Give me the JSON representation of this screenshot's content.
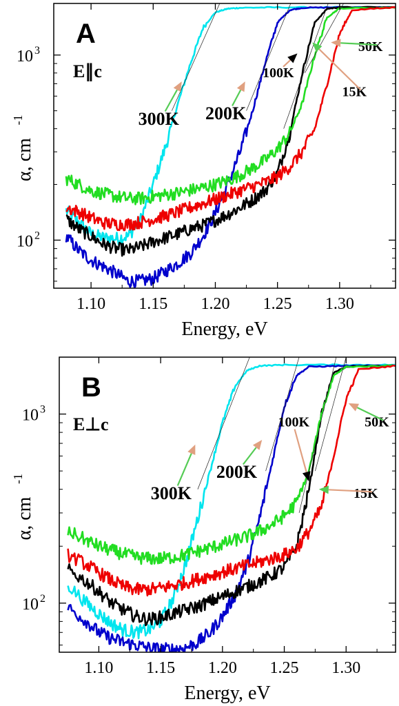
{
  "chart_data": [
    {
      "type": "line",
      "panel": "A",
      "polarization": "E∥c",
      "xlabel": "Energy, eV",
      "ylabel": "α, cm",
      "ylabel_sup": "-1",
      "xlim": [
        1.07,
        1.345
      ],
      "ylim": [
        55,
        1900
      ],
      "yscale": "log",
      "grid": false,
      "xticks": [
        1.1,
        1.15,
        1.2,
        1.25,
        1.3
      ],
      "xtick_labels": [
        "1.10",
        "1.15",
        "1.20",
        "1.25",
        "1.30"
      ],
      "yticks": [
        100,
        1000
      ],
      "ytick_base": "10",
      "ytick_exps": [
        "2",
        "3"
      ],
      "series": [
        {
          "name": "300K",
          "color": "#00e5ee",
          "x": [
            1.08,
            1.09,
            1.1,
            1.11,
            1.12,
            1.13,
            1.14,
            1.15,
            1.16,
            1.17,
            1.18,
            1.19,
            1.2,
            1.21,
            1.22,
            1.25,
            1.3,
            1.345
          ],
          "y": [
            145,
            125,
            108,
            103,
            102,
            105,
            130,
            200,
            320,
            550,
            900,
            1400,
            1700,
            1780,
            1800,
            1810,
            1810,
            1810
          ]
        },
        {
          "name": "200K",
          "color": "#0000cc",
          "x": [
            1.08,
            1.09,
            1.1,
            1.11,
            1.12,
            1.13,
            1.14,
            1.15,
            1.16,
            1.17,
            1.18,
            1.19,
            1.2,
            1.21,
            1.22,
            1.23,
            1.24,
            1.25,
            1.26,
            1.27,
            1.3,
            1.345
          ],
          "y": [
            105,
            88,
            78,
            72,
            66,
            60,
            60,
            62,
            68,
            75,
            85,
            105,
            140,
            200,
            300,
            500,
            900,
            1500,
            1750,
            1800,
            1810,
            1810
          ]
        },
        {
          "name": "100K",
          "color": "#000000",
          "x": [
            1.08,
            1.09,
            1.1,
            1.11,
            1.12,
            1.13,
            1.14,
            1.15,
            1.16,
            1.17,
            1.18,
            1.19,
            1.2,
            1.21,
            1.22,
            1.23,
            1.24,
            1.25,
            1.26,
            1.27,
            1.28,
            1.29,
            1.3,
            1.345
          ],
          "y": [
            130,
            115,
            105,
            95,
            90,
            88,
            92,
            98,
            103,
            108,
            115,
            120,
            128,
            138,
            150,
            165,
            185,
            230,
            380,
            800,
            1500,
            1780,
            1810,
            1810
          ]
        },
        {
          "name": "50K",
          "color": "#22dd22",
          "x": [
            1.08,
            1.09,
            1.1,
            1.11,
            1.12,
            1.13,
            1.14,
            1.15,
            1.16,
            1.17,
            1.18,
            1.19,
            1.2,
            1.21,
            1.22,
            1.23,
            1.24,
            1.25,
            1.26,
            1.27,
            1.28,
            1.29,
            1.3,
            1.345
          ],
          "y": [
            215,
            200,
            185,
            178,
            172,
            168,
            168,
            172,
            176,
            180,
            186,
            192,
            200,
            210,
            225,
            245,
            270,
            310,
            380,
            550,
            1000,
            1600,
            1790,
            1800
          ]
        },
        {
          "name": "15K",
          "color": "#ee0000",
          "x": [
            1.08,
            1.09,
            1.1,
            1.11,
            1.12,
            1.13,
            1.14,
            1.15,
            1.16,
            1.17,
            1.18,
            1.19,
            1.2,
            1.21,
            1.22,
            1.23,
            1.24,
            1.25,
            1.26,
            1.27,
            1.28,
            1.29,
            1.3,
            1.31,
            1.345
          ],
          "y": [
            150,
            142,
            132,
            124,
            122,
            122,
            125,
            130,
            135,
            142,
            150,
            158,
            166,
            175,
            185,
            195,
            205,
            220,
            250,
            300,
            400,
            700,
            1300,
            1750,
            1810
          ]
        }
      ],
      "fit_lines": [
        {
          "x": [
            1.165,
            1.205
          ],
          "y": [
            500,
            2000
          ]
        },
        {
          "x": [
            1.225,
            1.262
          ],
          "y": [
            500,
            2000
          ]
        },
        {
          "x": [
            1.255,
            1.292
          ],
          "y": [
            400,
            2000
          ]
        },
        {
          "x": [
            1.272,
            1.305
          ],
          "y": [
            800,
            2000
          ]
        }
      ],
      "annotations": [
        {
          "text": "300K",
          "x": 1.138,
          "y": 420,
          "to": [
            1.173,
            720
          ],
          "arrow": "#55cc55",
          "head": "#e0a080",
          "size": 26
        },
        {
          "text": "200K",
          "x": 1.192,
          "y": 450,
          "to": [
            1.224,
            720
          ],
          "arrow": "#55cc55",
          "head": "#e0a080",
          "size": 26
        },
        {
          "text": "100K",
          "x": 1.238,
          "y": 760,
          "to": [
            1.266,
            1020
          ],
          "arrow": "#e0a080",
          "head": "#000000",
          "size": 20
        },
        {
          "text": "50K",
          "x": 1.315,
          "y": 1050,
          "to": [
            1.293,
            1170
          ],
          "arrow": "#55cc55",
          "head": "#e0a080",
          "size": 20
        },
        {
          "text": "15K",
          "x": 1.302,
          "y": 600,
          "to": [
            1.278,
            1170
          ],
          "arrow": "#e0a080",
          "head": "#55cc55",
          "size": 20
        }
      ]
    },
    {
      "type": "line",
      "panel": "B",
      "polarization": "E⊥c",
      "xlabel": "Energy, eV",
      "ylabel": "α, cm",
      "ylabel_sup": "-1",
      "xlim": [
        1.068,
        1.34
      ],
      "ylim": [
        55,
        2000
      ],
      "yscale": "log",
      "grid": false,
      "xticks": [
        1.1,
        1.15,
        1.2,
        1.25,
        1.3
      ],
      "xtick_labels": [
        "1.10",
        "1.15",
        "1.20",
        "1.25",
        "1.30"
      ],
      "yticks": [
        100,
        1000
      ],
      "ytick_base": "10",
      "ytick_exps": [
        "2",
        "3"
      ],
      "series": [
        {
          "name": "300K",
          "color": "#00e5ee",
          "x": [
            1.075,
            1.09,
            1.1,
            1.11,
            1.12,
            1.13,
            1.14,
            1.15,
            1.16,
            1.17,
            1.18,
            1.19,
            1.2,
            1.21,
            1.22,
            1.23,
            1.25,
            1.3,
            1.34
          ],
          "y": [
            125,
            100,
            88,
            78,
            72,
            70,
            72,
            80,
            105,
            160,
            280,
            500,
            900,
            1400,
            1700,
            1800,
            1820,
            1820,
            1820
          ]
        },
        {
          "name": "200K",
          "color": "#0000cc",
          "x": [
            1.075,
            1.09,
            1.1,
            1.11,
            1.12,
            1.13,
            1.14,
            1.15,
            1.16,
            1.17,
            1.18,
            1.19,
            1.2,
            1.21,
            1.22,
            1.23,
            1.24,
            1.25,
            1.26,
            1.27,
            1.3,
            1.34
          ],
          "y": [
            95,
            80,
            70,
            65,
            62,
            60,
            58,
            57,
            57,
            58,
            62,
            70,
            85,
            110,
            160,
            280,
            550,
            1100,
            1600,
            1780,
            1800,
            1800
          ]
        },
        {
          "name": "100K",
          "color": "#000000",
          "x": [
            1.075,
            1.09,
            1.1,
            1.11,
            1.12,
            1.13,
            1.14,
            1.15,
            1.16,
            1.17,
            1.18,
            1.19,
            1.2,
            1.21,
            1.22,
            1.23,
            1.24,
            1.25,
            1.26,
            1.27,
            1.28,
            1.29,
            1.3,
            1.34
          ],
          "y": [
            150,
            130,
            115,
            100,
            92,
            85,
            82,
            84,
            88,
            92,
            96,
            102,
            108,
            115,
            122,
            130,
            140,
            155,
            200,
            400,
            1000,
            1650,
            1780,
            1800
          ]
        },
        {
          "name": "50K",
          "color": "#22dd22",
          "x": [
            1.075,
            1.09,
            1.1,
            1.11,
            1.12,
            1.13,
            1.14,
            1.15,
            1.16,
            1.17,
            1.18,
            1.19,
            1.2,
            1.21,
            1.22,
            1.23,
            1.24,
            1.25,
            1.26,
            1.27,
            1.28,
            1.29,
            1.3,
            1.34
          ],
          "y": [
            240,
            215,
            200,
            190,
            182,
            175,
            172,
            172,
            175,
            180,
            188,
            196,
            205,
            215,
            225,
            240,
            260,
            290,
            340,
            500,
            1000,
            1600,
            1780,
            1800
          ]
        },
        {
          "name": "15K",
          "color": "#ee0000",
          "x": [
            1.075,
            1.09,
            1.1,
            1.11,
            1.12,
            1.13,
            1.14,
            1.15,
            1.16,
            1.17,
            1.18,
            1.19,
            1.2,
            1.21,
            1.22,
            1.23,
            1.24,
            1.25,
            1.26,
            1.27,
            1.28,
            1.29,
            1.3,
            1.31,
            1.34
          ],
          "y": [
            180,
            160,
            145,
            132,
            122,
            118,
            118,
            120,
            124,
            128,
            134,
            140,
            146,
            152,
            158,
            165,
            172,
            180,
            195,
            240,
            320,
            600,
            1200,
            1720,
            1800
          ]
        }
      ],
      "fit_lines": [
        {
          "x": [
            1.18,
            1.222
          ],
          "y": [
            400,
            2000
          ]
        },
        {
          "x": [
            1.235,
            1.262
          ],
          "y": [
            500,
            2000
          ]
        },
        {
          "x": [
            1.262,
            1.292
          ],
          "y": [
            300,
            2000
          ]
        },
        {
          "x": [
            1.275,
            1.3
          ],
          "y": [
            500,
            2000
          ]
        }
      ],
      "annotations": [
        {
          "text": "300K",
          "x": 1.142,
          "y": 355,
          "to": [
            1.178,
            690
          ],
          "arrow": "#55cc55",
          "head": "#e0a080",
          "size": 26
        },
        {
          "text": "200K",
          "x": 1.195,
          "y": 460,
          "to": [
            1.232,
            730
          ],
          "arrow": "#55cc55",
          "head": "#e0a080",
          "size": 26
        },
        {
          "text": "100K",
          "x": 1.245,
          "y": 860,
          "to": [
            1.27,
            440
          ],
          "arrow": "#e0a080",
          "head": "#000000",
          "size": 20
        },
        {
          "text": "50K",
          "x": 1.315,
          "y": 860,
          "to": [
            1.302,
            1140
          ],
          "arrow": "#55cc55",
          "head": "#e0a080",
          "size": 20
        },
        {
          "text": "15K",
          "x": 1.306,
          "y": 360,
          "to": [
            1.278,
            400
          ],
          "arrow": "#e0a080",
          "head": "#55cc55",
          "size": 20
        }
      ]
    }
  ]
}
